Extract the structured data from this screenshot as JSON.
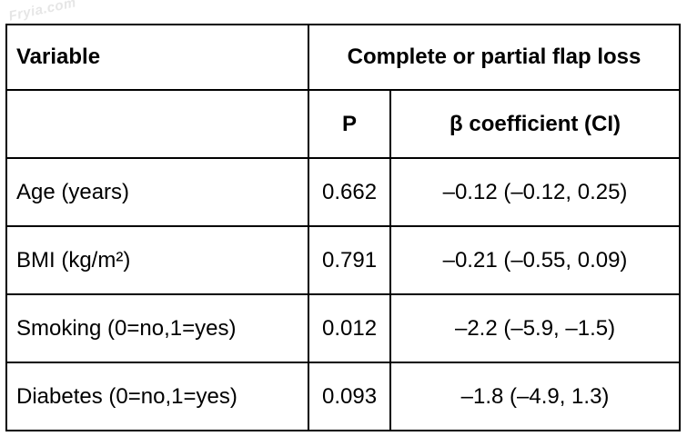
{
  "watermark": "Fryia.com",
  "table": {
    "header": {
      "variable": "Variable",
      "group": "Complete or partial flap loss",
      "p": "P",
      "beta": "β coefficient (CI)"
    },
    "rows": [
      {
        "variable": "Age (years)",
        "p": "0.662",
        "beta": "–0.12 (–0.12, 0.25)"
      },
      {
        "variable": "BMI (kg/m²)",
        "p": "0.791",
        "beta": "–0.21 (–0.55, 0.09)"
      },
      {
        "variable": "Smoking (0=no,1=yes)",
        "p": "0.012",
        "beta": "–2.2 (–5.9, –1.5)"
      },
      {
        "variable": "Diabetes (0=no,1=yes)",
        "p": "0.093",
        "beta": "–1.8 (–4.9, 1.3)"
      }
    ]
  }
}
